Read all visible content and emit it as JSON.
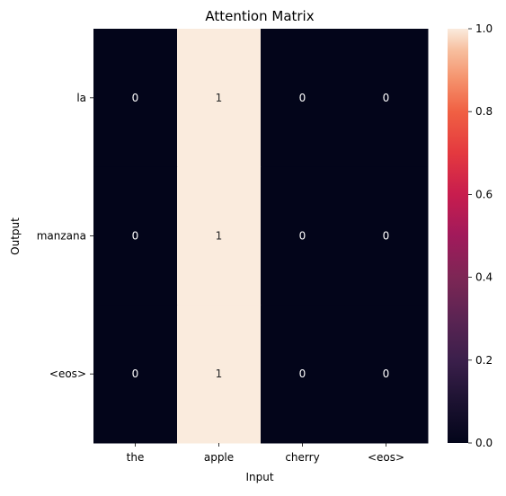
{
  "chart_data": {
    "type": "heatmap",
    "title": "Attention Matrix",
    "xlabel": "Input",
    "ylabel": "Output",
    "x_categories": [
      "the",
      "apple",
      "cherry",
      "<eos>"
    ],
    "y_categories": [
      "la",
      "manzana",
      "<eos>"
    ],
    "values": [
      [
        0,
        1,
        0,
        0
      ],
      [
        0,
        1,
        0,
        0
      ],
      [
        0,
        1,
        0,
        0
      ]
    ],
    "cell_labels": [
      [
        "0",
        "1",
        "0",
        "0"
      ],
      [
        "0",
        "1",
        "0",
        "0"
      ],
      [
        "0",
        "1",
        "0",
        "0"
      ]
    ],
    "colorbar": {
      "range": [
        0.0,
        1.0
      ],
      "ticks": [
        0.0,
        0.2,
        0.4,
        0.6,
        0.8,
        1.0
      ],
      "tick_labels": [
        "0.0",
        "0.2",
        "0.4",
        "0.6",
        "0.8",
        "1.0"
      ],
      "colormap": "rocket"
    },
    "colors": {
      "low": "#03051a",
      "high": "#faebdd"
    }
  }
}
